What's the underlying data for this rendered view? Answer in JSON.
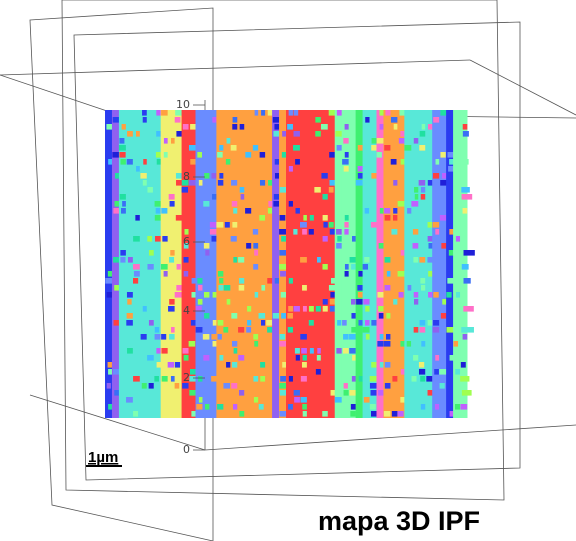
{
  "axis": {
    "ticks": [
      "10",
      "8",
      "6",
      "4",
      "2",
      "0"
    ]
  },
  "scale_bar": "1µm",
  "title": "mapa 3D IPF"
}
